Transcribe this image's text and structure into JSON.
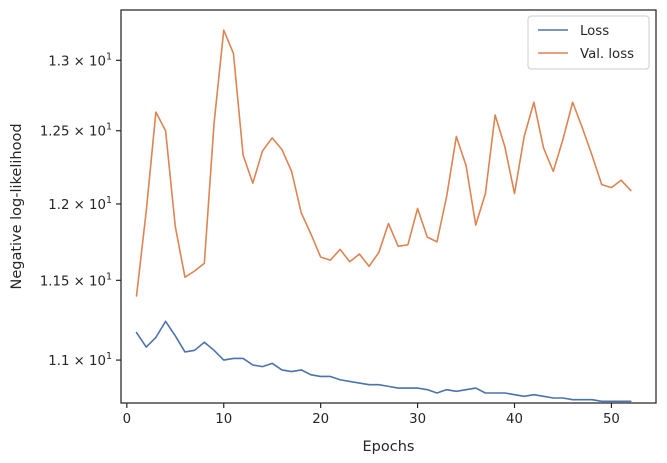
{
  "chart_data": {
    "type": "line",
    "title": "",
    "xlabel": "Epochs",
    "ylabel": "Negative log-likelihood",
    "xlim": [
      -0.6,
      54.6
    ],
    "ylim": [
      10.74,
      13.37
    ],
    "y_scale": "log",
    "grid": false,
    "legend_position": "top-right",
    "x_ticks": [
      0,
      10,
      20,
      30,
      40,
      50
    ],
    "x_tick_labels": [
      "0",
      "10",
      "20",
      "30",
      "40",
      "50"
    ],
    "y_ticks": [
      11.0,
      11.5,
      12.0,
      12.5,
      13.0
    ],
    "y_tick_labels": [
      {
        "mantissa": "1.1",
        "base": "10",
        "exp": "1"
      },
      {
        "mantissa": "1.15",
        "base": "10",
        "exp": "1"
      },
      {
        "mantissa": "1.2",
        "base": "10",
        "exp": "1"
      },
      {
        "mantissa": "1.25",
        "base": "10",
        "exp": "1"
      },
      {
        "mantissa": "1.3",
        "base": "10",
        "exp": "1"
      }
    ],
    "x": [
      1,
      2,
      3,
      4,
      5,
      6,
      7,
      8,
      9,
      10,
      11,
      12,
      13,
      14,
      15,
      16,
      17,
      18,
      19,
      20,
      21,
      22,
      23,
      24,
      25,
      26,
      27,
      28,
      29,
      30,
      31,
      32,
      33,
      34,
      35,
      36,
      37,
      38,
      39,
      40,
      41,
      42,
      43,
      44,
      45,
      46,
      47,
      48,
      49,
      50,
      51,
      52
    ],
    "series": [
      {
        "name": "Loss",
        "color": "#4c72b0",
        "values": [
          11.17,
          11.08,
          11.14,
          11.24,
          11.15,
          11.05,
          11.06,
          11.11,
          11.06,
          11.0,
          11.01,
          11.01,
          10.97,
          10.96,
          10.98,
          10.94,
          10.93,
          10.94,
          10.91,
          10.9,
          10.9,
          10.88,
          10.87,
          10.86,
          10.85,
          10.85,
          10.84,
          10.83,
          10.83,
          10.83,
          10.82,
          10.8,
          10.82,
          10.81,
          10.82,
          10.83,
          10.8,
          10.8,
          10.8,
          10.79,
          10.78,
          10.79,
          10.78,
          10.77,
          10.77,
          10.76,
          10.76,
          10.76,
          10.75,
          10.75,
          10.75,
          10.75
        ]
      },
      {
        "name": "Val. loss",
        "color": "#dd8452",
        "values": [
          11.4,
          11.95,
          12.63,
          12.5,
          11.85,
          11.52,
          11.56,
          11.61,
          12.55,
          13.22,
          13.05,
          12.33,
          12.14,
          12.36,
          12.45,
          12.37,
          12.22,
          11.94,
          11.8,
          11.65,
          11.63,
          11.7,
          11.62,
          11.67,
          11.59,
          11.68,
          11.87,
          11.72,
          11.73,
          11.97,
          11.78,
          11.75,
          12.05,
          12.46,
          12.26,
          11.86,
          12.07,
          12.61,
          12.39,
          12.07,
          12.46,
          12.7,
          12.38,
          12.22,
          12.44,
          12.7,
          12.52,
          12.33,
          12.13,
          12.11,
          12.16,
          12.09
        ]
      }
    ]
  }
}
